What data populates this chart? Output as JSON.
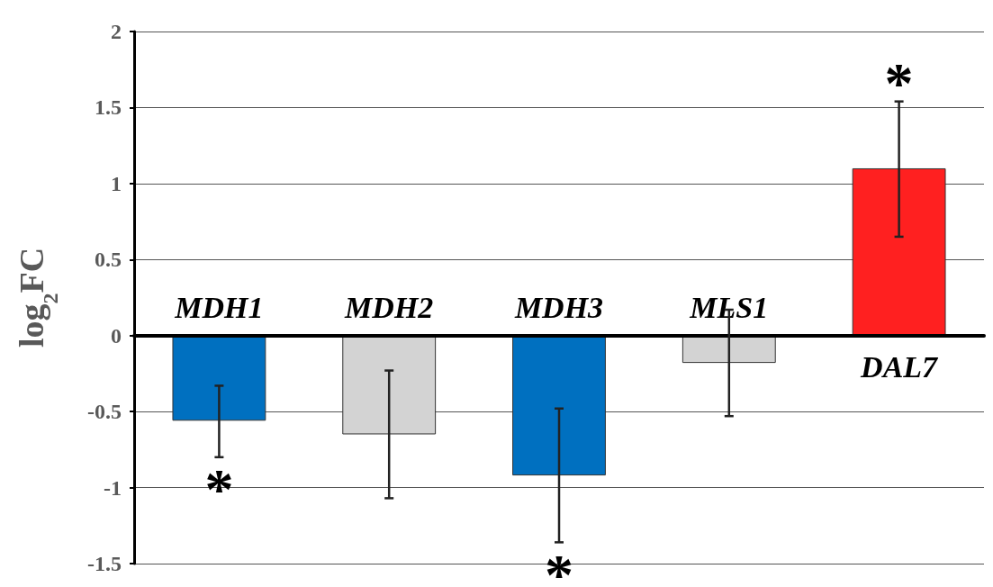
{
  "chart_data": {
    "type": "bar",
    "ylabel": "log$_{2}$FC",
    "categories": [
      "MDH1",
      "MDH2",
      "MDH3",
      "MLS1",
      "DAL7"
    ],
    "values": [
      -0.56,
      -0.65,
      -0.92,
      -0.18,
      1.1
    ],
    "colors": [
      "#0070c0",
      "#d3d3d3",
      "#0070c0",
      "#d3d3d3",
      "#ff2020"
    ],
    "errors": [
      [
        -0.8,
        -0.33
      ],
      [
        -1.07,
        -0.23
      ],
      [
        -1.36,
        -0.48
      ],
      [
        -0.53,
        0.17
      ],
      [
        0.65,
        1.54
      ]
    ],
    "ylim": [
      -1.5,
      2
    ],
    "yticks": [
      -1.5,
      -1,
      -0.5,
      0,
      0.5,
      1,
      1.5,
      2
    ],
    "grid": "y",
    "tick_labels": "y",
    "annotations": [
      {
        "text": "*",
        "x": "MDH1",
        "y": -0.8
      },
      {
        "text": "*",
        "x": "MDH3",
        "y": -1.36
      },
      {
        "text": "*",
        "x": "DAL7",
        "y": 1.54
      }
    ]
  }
}
